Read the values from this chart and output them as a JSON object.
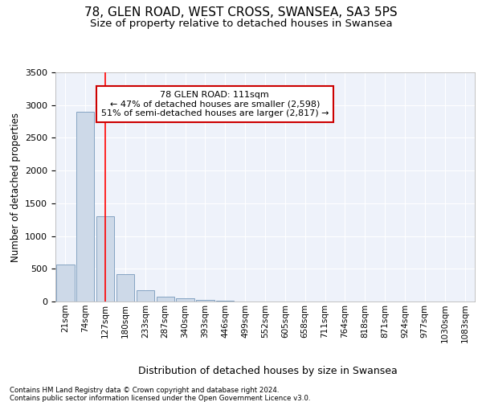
{
  "title1": "78, GLEN ROAD, WEST CROSS, SWANSEA, SA3 5PS",
  "title2": "Size of property relative to detached houses in Swansea",
  "xlabel": "Distribution of detached houses by size in Swansea",
  "ylabel": "Number of detached properties",
  "bin_labels": [
    "21sqm",
    "74sqm",
    "127sqm",
    "180sqm",
    "233sqm",
    "287sqm",
    "340sqm",
    "393sqm",
    "446sqm",
    "499sqm",
    "552sqm",
    "605sqm",
    "658sqm",
    "711sqm",
    "764sqm",
    "818sqm",
    "871sqm",
    "924sqm",
    "977sqm",
    "1030sqm",
    "1083sqm"
  ],
  "bar_values": [
    570,
    2900,
    1300,
    415,
    170,
    75,
    50,
    25,
    10,
    0,
    0,
    0,
    0,
    0,
    0,
    0,
    0,
    0,
    0,
    0,
    0
  ],
  "bar_color": "#cdd9e8",
  "bar_edge_color": "#7799bb",
  "annotation_text": "78 GLEN ROAD: 111sqm\n← 47% of detached houses are smaller (2,598)\n51% of semi-detached houses are larger (2,817) →",
  "annotation_box_color": "#ffffff",
  "annotation_box_edge": "#cc0000",
  "red_line_x": 2.0,
  "footer1": "Contains HM Land Registry data © Crown copyright and database right 2024.",
  "footer2": "Contains public sector information licensed under the Open Government Licence v3.0.",
  "ylim": [
    0,
    3500
  ],
  "yticks": [
    0,
    500,
    1000,
    1500,
    2000,
    2500,
    3000,
    3500
  ],
  "bg_color": "#eef2fa",
  "title1_fontsize": 11,
  "title2_fontsize": 9.5
}
